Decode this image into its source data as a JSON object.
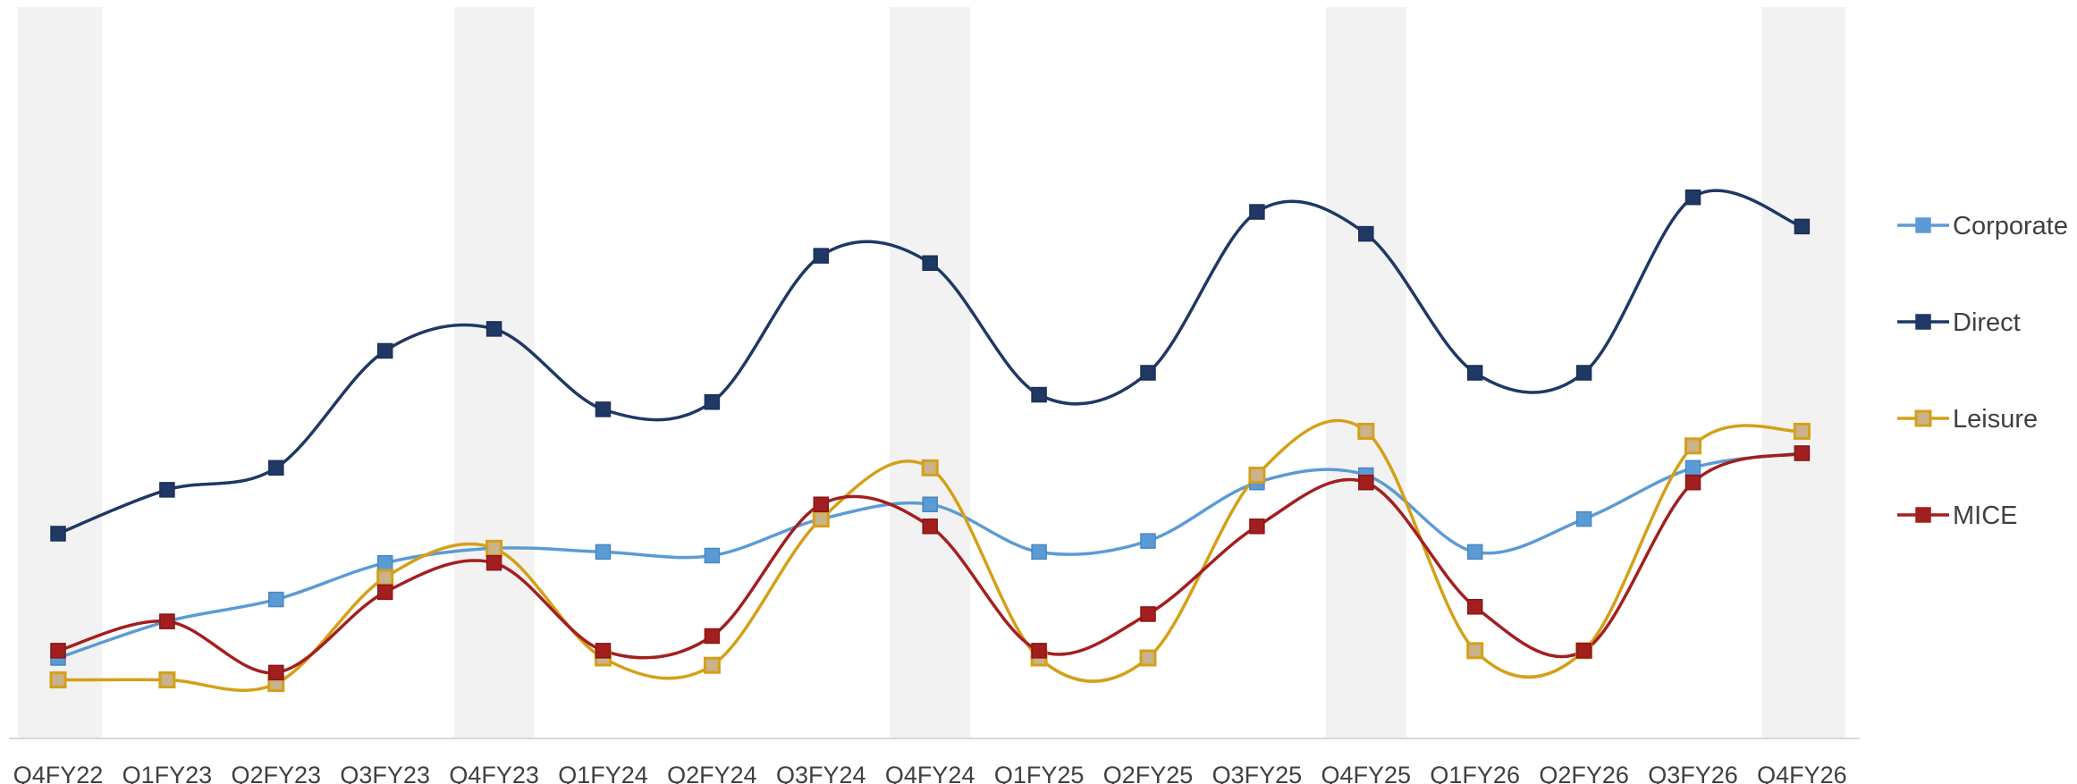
{
  "chart_data": {
    "type": "line",
    "categories": [
      "Q4FY22",
      "Q1FY23",
      "Q2FY23",
      "Q3FY23",
      "Q4FY23",
      "Q1FY24",
      "Q2FY24",
      "Q3FY24",
      "Q4FY24",
      "Q1FY25",
      "Q2FY25",
      "Q3FY25",
      "Q4FY25",
      "Q1FY26",
      "Q2FY26",
      "Q3FY26",
      "Q4FY26"
    ],
    "highlighted_categories": [
      "Q4FY22",
      "Q4FY23",
      "Q4FY24",
      "Q4FY25",
      "Q4FY26"
    ],
    "title": "",
    "xlabel": "",
    "ylabel": "",
    "ylim": [
      0,
      100
    ],
    "y_axis_labels_shown": false,
    "grid": false,
    "smooth": true,
    "legend": {
      "position": "right"
    },
    "series": [
      {
        "name": "Corporate",
        "color": "#5B9BD5",
        "values": [
          11,
          16,
          19,
          24,
          26,
          25.5,
          25,
          30,
          32,
          25.5,
          27,
          35,
          36,
          25.5,
          30,
          37,
          39
        ]
      },
      {
        "name": "Direct",
        "color": "#1F3864",
        "values": [
          28,
          34,
          37,
          53,
          56,
          45,
          46,
          66,
          65,
          47,
          50,
          72,
          69,
          50,
          50,
          74,
          70
        ]
      },
      {
        "name": "Leisure",
        "color": "#D4A017",
        "values": [
          8,
          8,
          7.5,
          22,
          26,
          11,
          10,
          30,
          37,
          11,
          11,
          36,
          42,
          12,
          12,
          40,
          42
        ]
      },
      {
        "name": "MICE",
        "color": "#A31F1F",
        "values": [
          12,
          16,
          9,
          20,
          24,
          12,
          14,
          32,
          29,
          12,
          17,
          29,
          35,
          18,
          12,
          35,
          39
        ]
      }
    ]
  }
}
